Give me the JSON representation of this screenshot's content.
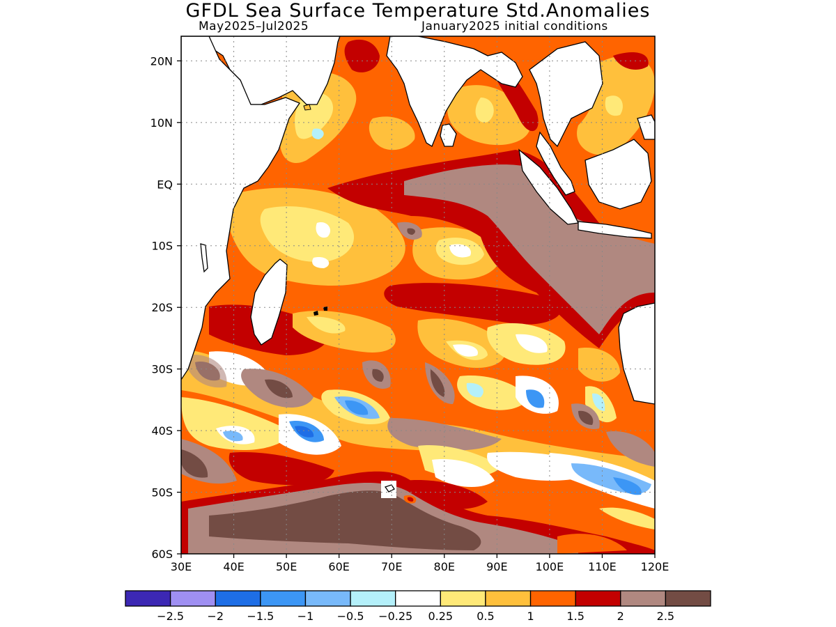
{
  "title": "GFDL Sea Surface Temperature Std.Anomalies",
  "subtitle_left": "May2025–Jul2025",
  "subtitle_right": "January2025 initial conditions",
  "map": {
    "lat_labels": [
      "20N",
      "10N",
      "EQ",
      "10S",
      "20S",
      "30S",
      "40S",
      "50S",
      "60S"
    ],
    "lon_labels": [
      "30E",
      "40E",
      "50E",
      "60E",
      "70E",
      "80E",
      "90E",
      "100E",
      "110E",
      "120E"
    ],
    "lon_range": [
      30,
      120
    ],
    "lat_range": [
      -60,
      24
    ],
    "grid": "dotted"
  },
  "colorbar": {
    "tick_labels": [
      "−2.5",
      "−2",
      "−1.5",
      "−1",
      "−0.5",
      "−0.25",
      "0.25",
      "0.5",
      "1",
      "1.5",
      "2",
      "2.5"
    ],
    "colors": [
      "#3c28b4",
      "#9f8ff2",
      "#1e6ee6",
      "#3c96f5",
      "#78b9fa",
      "#b4f0fa",
      "#ffffff",
      "#ffe978",
      "#ffc03c",
      "#ff6400",
      "#c30000",
      "#b08880",
      "#734c44"
    ]
  },
  "colors": {
    "very_high": "#734c44",
    "high": "#b08880",
    "red": "#c30000",
    "orange": "#ff6400",
    "light_orange": "#ffc03c",
    "yellow": "#ffe978",
    "neutral": "#ffffff",
    "light_blue": "#b4f0fa",
    "blue": "#78b9fa",
    "mid_blue": "#3c96f5",
    "deep_blue": "#1e6ee6"
  }
}
